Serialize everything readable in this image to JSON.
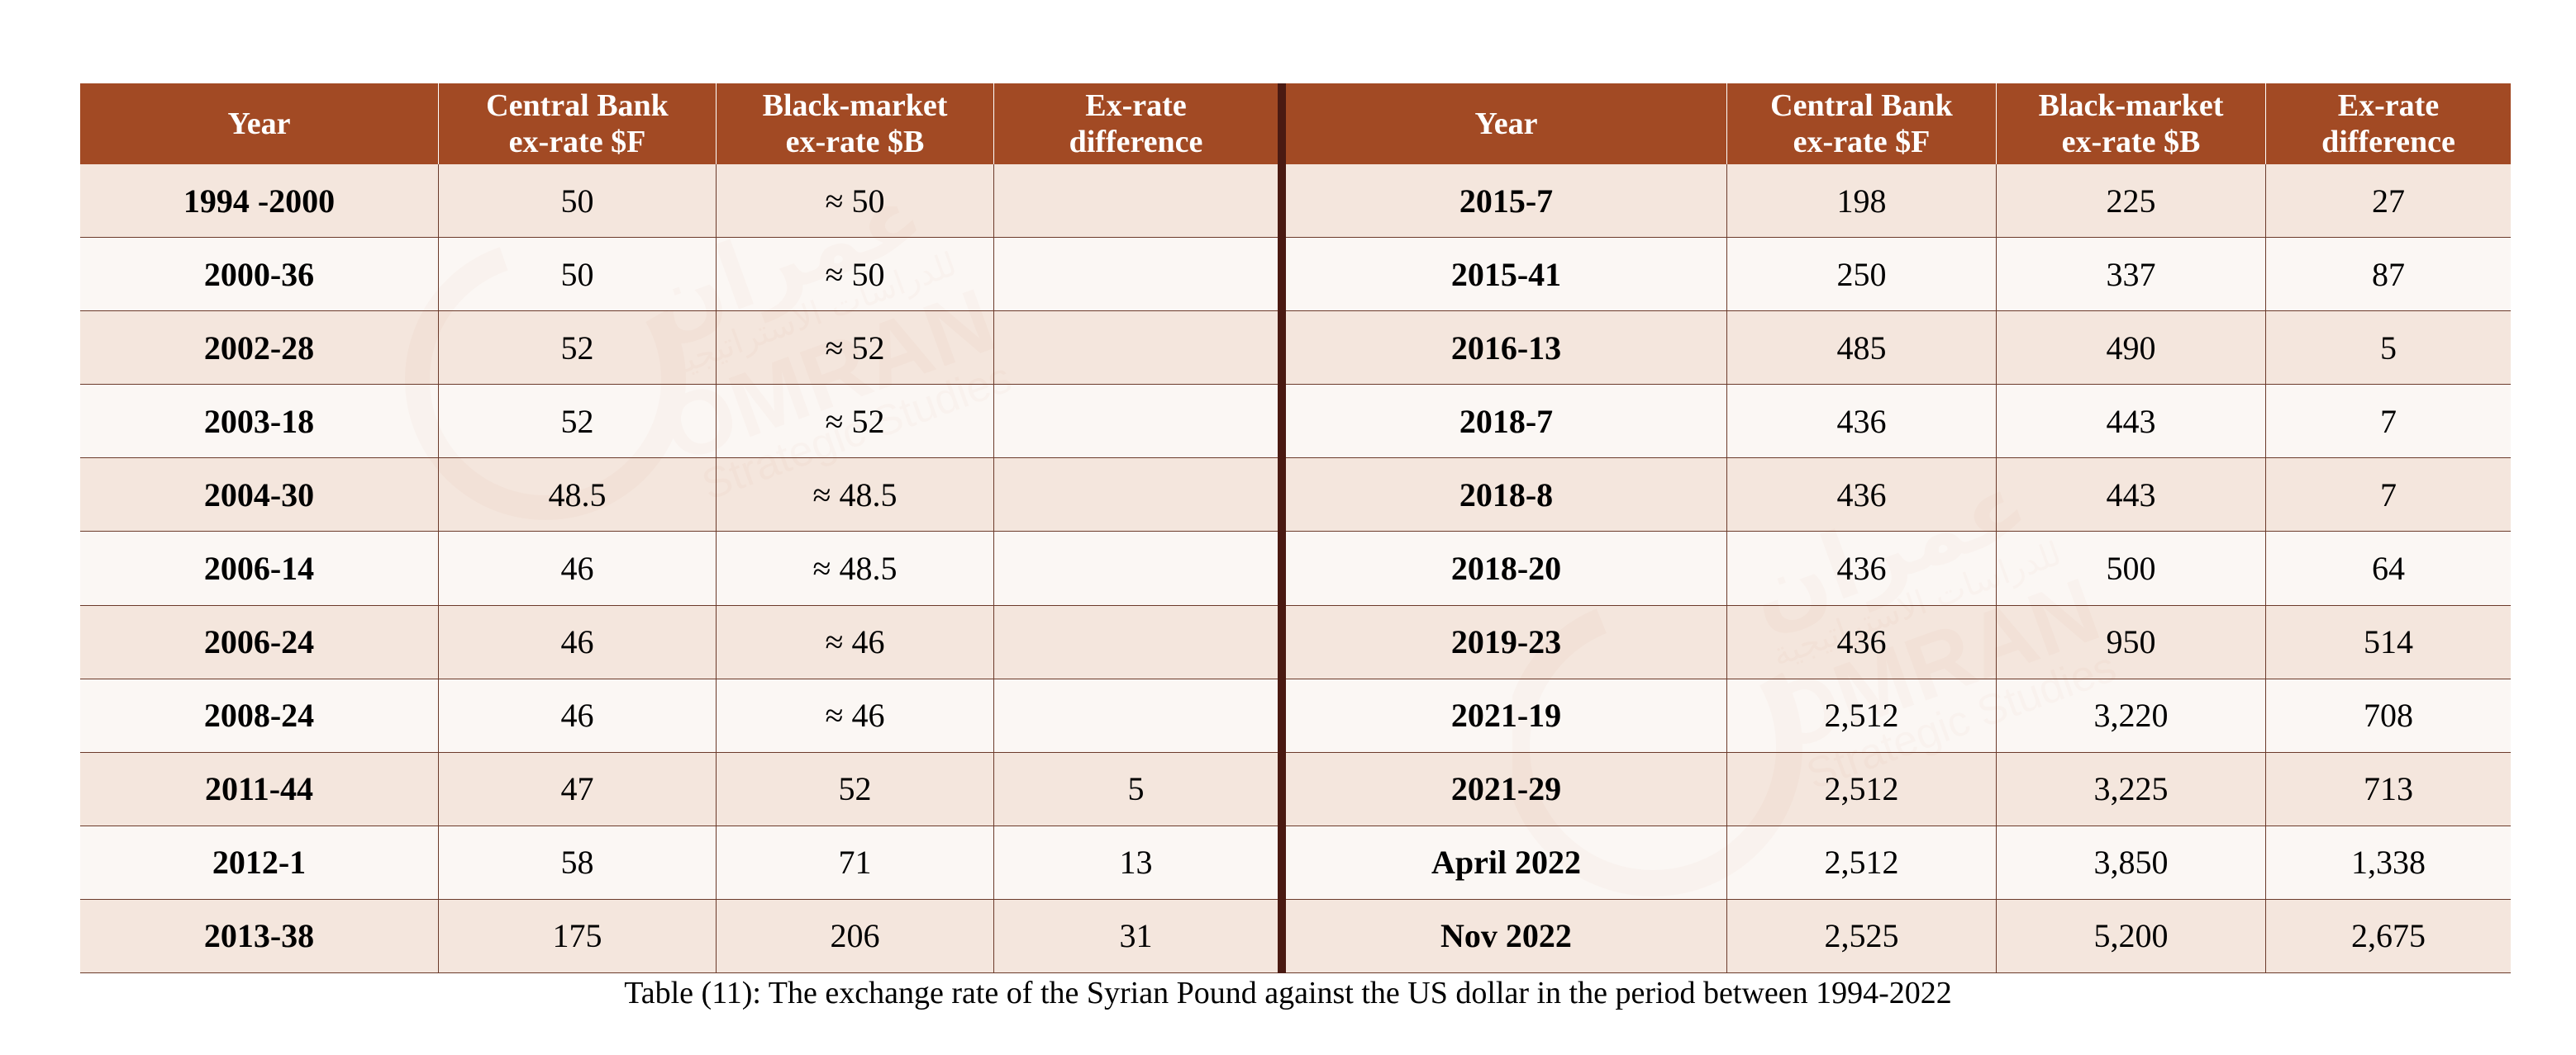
{
  "table": {
    "headers": {
      "year": "Year",
      "central": "Central Bank\nex-rate $F",
      "black": "Black-market\nex-rate $B",
      "diff": "Ex-rate\ndifference"
    },
    "left_rows": [
      {
        "year": "1994 -2000",
        "central": "50",
        "black": "≈ 50",
        "diff": ""
      },
      {
        "year": "2000-36",
        "central": "50",
        "black": "≈ 50",
        "diff": ""
      },
      {
        "year": "2002-28",
        "central": "52",
        "black": "≈ 52",
        "diff": ""
      },
      {
        "year": "2003-18",
        "central": "52",
        "black": "≈ 52",
        "diff": ""
      },
      {
        "year": "2004-30",
        "central": "48.5",
        "black": "≈ 48.5",
        "diff": ""
      },
      {
        "year": "2006-14",
        "central": "46",
        "black": "≈ 48.5",
        "diff": ""
      },
      {
        "year": "2006-24",
        "central": "46",
        "black": "≈ 46",
        "diff": ""
      },
      {
        "year": "2008-24",
        "central": "46",
        "black": "≈ 46",
        "diff": ""
      },
      {
        "year": "2011-44",
        "central": "47",
        "black": "52",
        "diff": "5"
      },
      {
        "year": "2012-1",
        "central": "58",
        "black": "71",
        "diff": "13"
      },
      {
        "year": "2013-38",
        "central": "175",
        "black": "206",
        "diff": "31"
      }
    ],
    "right_rows": [
      {
        "year": "2015-7",
        "central": "198",
        "black": "225",
        "diff": "27"
      },
      {
        "year": "2015-41",
        "central": "250",
        "black": "337",
        "diff": "87"
      },
      {
        "year": "2016-13",
        "central": "485",
        "black": "490",
        "diff": "5"
      },
      {
        "year": "2018-7",
        "central": "436",
        "black": "443",
        "diff": "7"
      },
      {
        "year": "2018-8",
        "central": "436",
        "black": "443",
        "diff": "7"
      },
      {
        "year": "2018-20",
        "central": "436",
        "black": "500",
        "diff": "64"
      },
      {
        "year": "2019-23",
        "central": "436",
        "black": "950",
        "diff": "514"
      },
      {
        "year": "2021-19",
        "central": "2,512",
        "black": "3,220",
        "diff": "708"
      },
      {
        "year": "2021-29",
        "central": "2,512",
        "black": "3,225",
        "diff": "713"
      },
      {
        "year": "April 2022",
        "central": "2,512",
        "black": "3,850",
        "diff": "1,338"
      },
      {
        "year": "Nov 2022",
        "central": "2,525",
        "black": "5,200",
        "diff": "2,675"
      }
    ]
  },
  "caption": "Table (11): The exchange rate of the Syrian Pound against the US dollar in the period between 1994-2022",
  "watermark": {
    "arabic_brand": "عمران",
    "arabic_tagline": "للدراسات الاستراتيجية",
    "brand": "OMRAN",
    "tagline": "Strategic Studies"
  },
  "colors": {
    "header_bg": "#a24a24",
    "header_text": "#ffffff",
    "row_odd": "#f1e1d6",
    "row_even": "#faf5f2",
    "divider": "#4a1a12",
    "watermark": "#c98a6e"
  }
}
